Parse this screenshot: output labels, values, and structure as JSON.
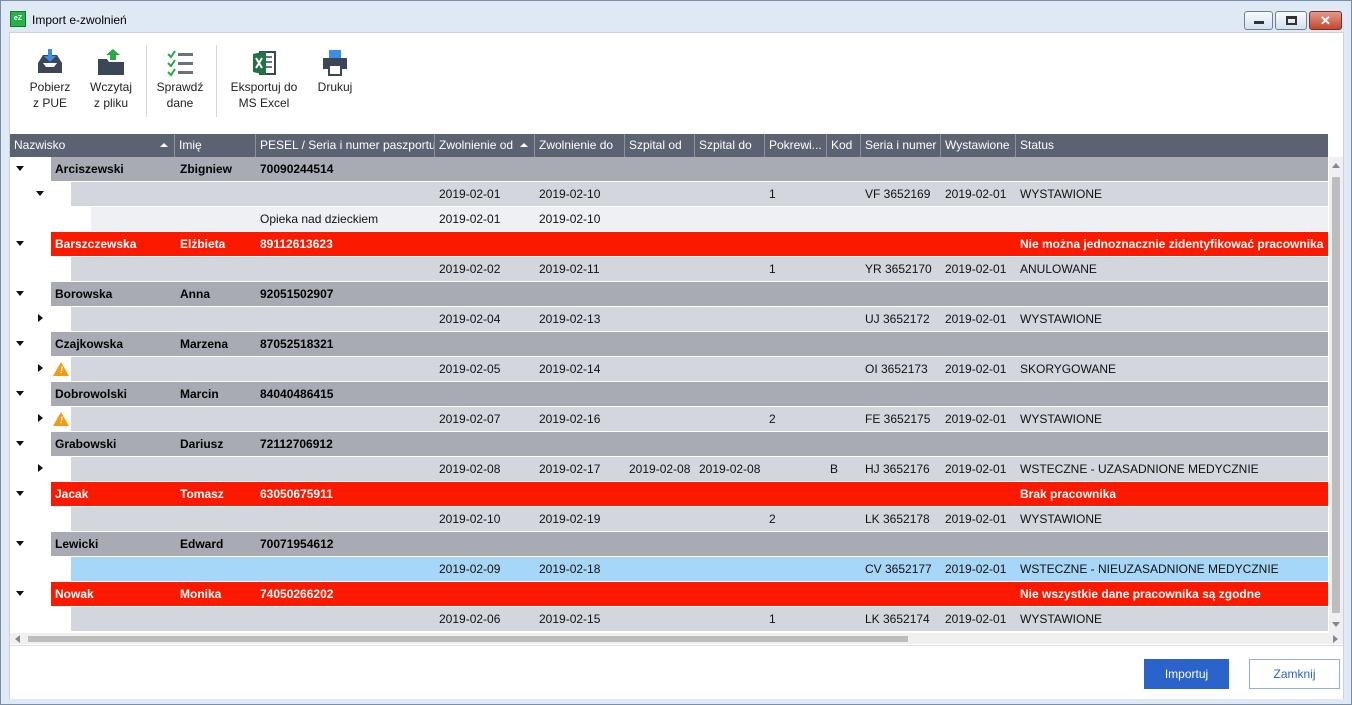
{
  "window": {
    "title": "Import e-zwolnień",
    "app_icon_text": "eZ"
  },
  "toolbar": {
    "download": [
      "Pobierz",
      "z PUE"
    ],
    "load": [
      "Wczytaj",
      "z pliku"
    ],
    "check": [
      "Sprawdź",
      "dane"
    ],
    "export": [
      "Eksportuj do",
      "MS Excel"
    ],
    "print": [
      "Drukuj"
    ]
  },
  "columns": [
    "Nazwisko",
    "Imię",
    "PESEL / Seria i numer paszportu",
    "Zwolnienie od",
    "Zwolnienie do",
    "Szpital od",
    "Szpital do",
    "Pokrewi...",
    "Kod",
    "Seria i numer",
    "Wystawione",
    "Status"
  ],
  "sorted_columns": [
    "Nazwisko",
    "Zwolnienie od"
  ],
  "rows": [
    {
      "type": "p",
      "toggle": "expanded",
      "surname": "Arciszewski",
      "name": "Zbigniew",
      "pesel": "70090244514"
    },
    {
      "type": "c",
      "toggle": "expanded",
      "from": "2019-02-01",
      "to": "2019-02-10",
      "kin": "1",
      "series": "VF 3652169",
      "issued": "2019-02-01",
      "status": "WYSTAWIONE"
    },
    {
      "type": "g",
      "desc": "Opieka nad dzieckiem",
      "from": "2019-02-01",
      "to": "2019-02-10"
    },
    {
      "type": "r",
      "toggle": "expanded",
      "surname": "Barszczewska",
      "name": "Elżbieta",
      "pesel": "89112613623",
      "status": "Nie można jednoznacznie zidentyfikować pracownika"
    },
    {
      "type": "c",
      "from": "2019-02-02",
      "to": "2019-02-11",
      "kin": "1",
      "series": "YR 3652170",
      "issued": "2019-02-01",
      "status": "ANULOWANE"
    },
    {
      "type": "p",
      "toggle": "expanded",
      "surname": "Borowska",
      "name": "Anna",
      "pesel": "92051502907"
    },
    {
      "type": "c",
      "toggle": "collapsed",
      "from": "2019-02-04",
      "to": "2019-02-13",
      "series": "UJ 3652172",
      "issued": "2019-02-01",
      "status": "WYSTAWIONE"
    },
    {
      "type": "p",
      "toggle": "expanded",
      "surname": "Czajkowska",
      "name": "Marzena",
      "pesel": "87052518321"
    },
    {
      "type": "c",
      "toggle": "collapsed",
      "warn": true,
      "from": "2019-02-05",
      "to": "2019-02-14",
      "series": "OI 3652173",
      "issued": "2019-02-01",
      "status": "SKORYGOWANE"
    },
    {
      "type": "p",
      "toggle": "expanded",
      "surname": "Dobrowolski",
      "name": "Marcin",
      "pesel": "84040486415"
    },
    {
      "type": "c",
      "toggle": "collapsed",
      "warn": true,
      "from": "2019-02-07",
      "to": "2019-02-16",
      "kin": "2",
      "series": "FE 3652175",
      "issued": "2019-02-01",
      "status": "WYSTAWIONE"
    },
    {
      "type": "p",
      "toggle": "expanded",
      "surname": "Grabowski",
      "name": "Dariusz",
      "pesel": "72112706912"
    },
    {
      "type": "c",
      "toggle": "collapsed",
      "from": "2019-02-08",
      "to": "2019-02-17",
      "hfrom": "2019-02-08",
      "hto": "2019-02-08",
      "code": "B",
      "series": "HJ 3652176",
      "issued": "2019-02-01",
      "status": "WSTECZNE - UZASADNIONE MEDYCZNIE"
    },
    {
      "type": "r",
      "toggle": "expanded",
      "surname": "Jacak",
      "name": "Tomasz",
      "pesel": "63050675911",
      "status": "Brak pracownika"
    },
    {
      "type": "c",
      "from": "2019-02-10",
      "to": "2019-02-19",
      "kin": "2",
      "series": "LK 3652178",
      "issued": "2019-02-01",
      "status": "WYSTAWIONE"
    },
    {
      "type": "p",
      "toggle": "expanded",
      "surname": "Lewicki",
      "name": "Edward",
      "pesel": "70071954612"
    },
    {
      "type": "s",
      "from": "2019-02-09",
      "to": "2019-02-18",
      "series": "CV 3652177",
      "issued": "2019-02-01",
      "status": "WSTECZNE - NIEUZASADNIONE MEDYCZNIE"
    },
    {
      "type": "r",
      "toggle": "expanded",
      "surname": "Nowak",
      "name": "Monika",
      "pesel": "74050266202",
      "status": "Nie wszystkie dane pracownika są zgodne"
    },
    {
      "type": "c",
      "from": "2019-02-06",
      "to": "2019-02-15",
      "kin": "1",
      "series": "LK 3652174",
      "issued": "2019-02-01",
      "status": "WYSTAWIONE"
    }
  ],
  "footer": {
    "import_label": "Importuj",
    "close_label": "Zamknij"
  }
}
